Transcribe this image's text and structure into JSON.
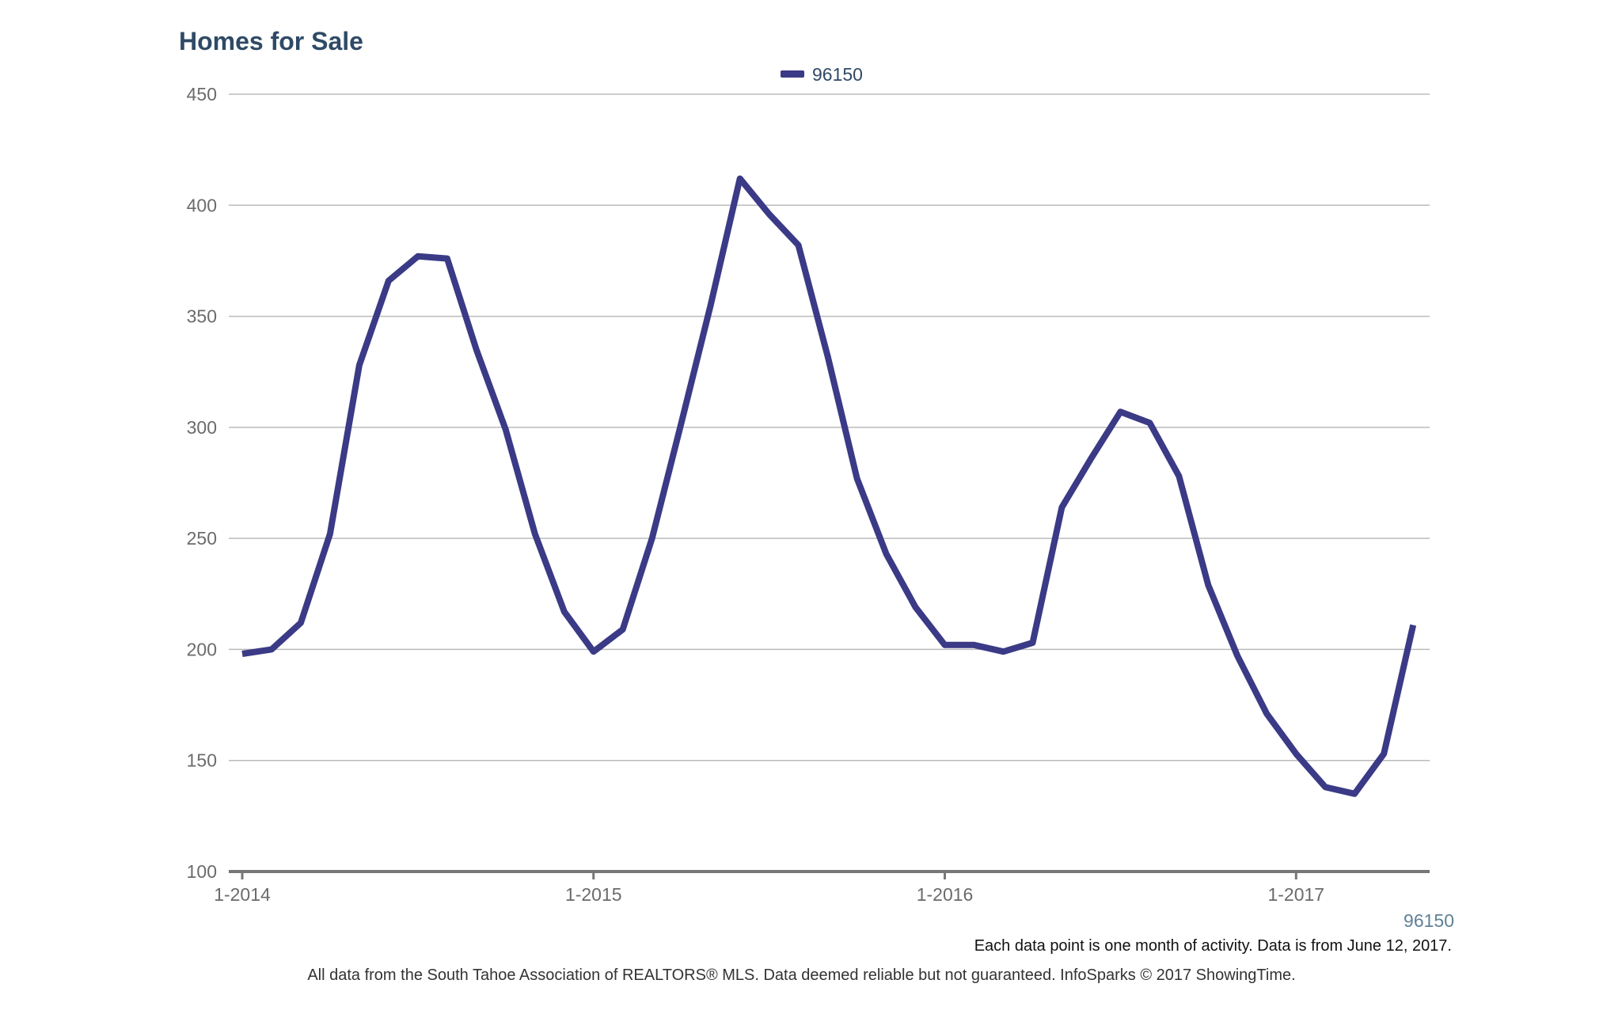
{
  "title": "Homes for Sale",
  "legend": {
    "label": "96150",
    "color": "#3b3a86"
  },
  "corner_label": "96150",
  "footnotes": {
    "activity": "Each data point is one month of activity. Data is from June 12, 2017.",
    "source": "All data from the South Tahoe Association of REALTORS® MLS. Data deemed reliable but not guaranteed. InfoSparks © 2017 ShowingTime."
  },
  "colors": {
    "line": "#3b3a86",
    "grid": "#bbbbbb",
    "axis": "#777777",
    "title": "#2f4a66"
  },
  "chart_data": {
    "type": "line",
    "title": "Homes for Sale",
    "xlabel": "",
    "ylabel": "",
    "ylim": [
      100,
      450
    ],
    "y_ticks": [
      100,
      150,
      200,
      250,
      300,
      350,
      400,
      450
    ],
    "x_ticks": [
      "1-2014",
      "1-2015",
      "1-2016",
      "1-2017"
    ],
    "grid": true,
    "legend_position": "top-center",
    "x": [
      "1-2014",
      "2-2014",
      "3-2014",
      "4-2014",
      "5-2014",
      "6-2014",
      "7-2014",
      "8-2014",
      "9-2014",
      "10-2014",
      "11-2014",
      "12-2014",
      "1-2015",
      "2-2015",
      "3-2015",
      "4-2015",
      "5-2015",
      "6-2015",
      "7-2015",
      "8-2015",
      "9-2015",
      "10-2015",
      "11-2015",
      "12-2015",
      "1-2016",
      "2-2016",
      "3-2016",
      "4-2016",
      "5-2016",
      "6-2016",
      "7-2016",
      "8-2016",
      "9-2016",
      "10-2016",
      "11-2016",
      "12-2016",
      "1-2017",
      "2-2017",
      "3-2017",
      "4-2017",
      "5-2017"
    ],
    "series": [
      {
        "name": "96150",
        "values": [
          198,
          200,
          212,
          252,
          328,
          366,
          377,
          376,
          335,
          299,
          252,
          217,
          199,
          209,
          250,
          302,
          355,
          412,
          396,
          382,
          332,
          277,
          243,
          219,
          202,
          202,
          199,
          203,
          264,
          286,
          307,
          302,
          278,
          229,
          197,
          171,
          153,
          138,
          135,
          153,
          211
        ]
      }
    ]
  }
}
